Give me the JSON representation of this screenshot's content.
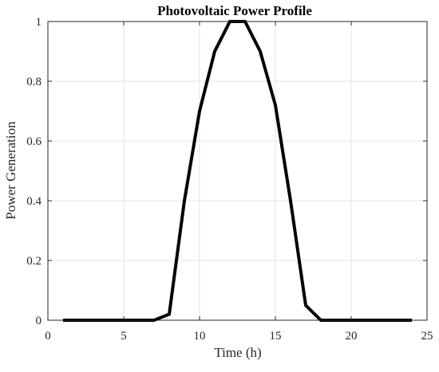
{
  "chart_data": {
    "type": "line",
    "title": "Photovoltaic Power Profile",
    "xlabel": "Time (h)",
    "ylabel": "Power Generation",
    "xlim": [
      0,
      25
    ],
    "ylim": [
      0,
      1
    ],
    "xticks": [
      0,
      5,
      10,
      15,
      20,
      25
    ],
    "xtick_labels": [
      "0",
      "5",
      "10",
      "15",
      "20",
      "25"
    ],
    "yticks": [
      0,
      0.2,
      0.4,
      0.6,
      0.8,
      1
    ],
    "ytick_labels": [
      "0",
      "0.2",
      "0.4",
      "0.6",
      "0.8",
      "1"
    ],
    "grid": true,
    "legend": "none",
    "series": [
      {
        "x": [
          1,
          2,
          3,
          4,
          5,
          6,
          7,
          8,
          9,
          10,
          11,
          12,
          13,
          14,
          15,
          16,
          17,
          18,
          19,
          20,
          21,
          22,
          23,
          24
        ],
        "values": [
          0,
          0,
          0,
          0,
          0,
          0,
          0,
          0.02,
          0.4,
          0.7,
          0.9,
          1,
          1,
          0.9,
          0.72,
          0.4,
          0.05,
          0,
          0,
          0,
          0,
          0,
          0,
          0
        ],
        "color": "#000000"
      }
    ],
    "colors": {
      "line": "#000000",
      "grid": "#e6e6e6",
      "axis": "#262626",
      "background": "#ffffff"
    }
  }
}
